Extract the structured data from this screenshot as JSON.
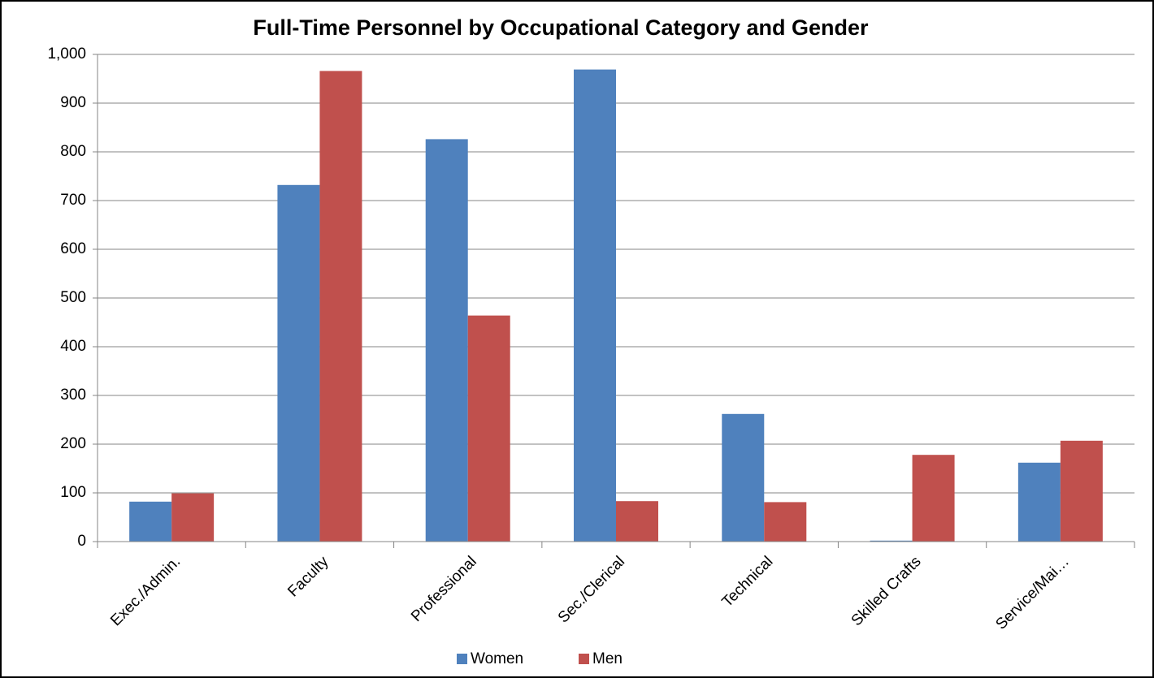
{
  "chart_data": {
    "type": "bar",
    "title": "Full-Time Personnel by Occupational Category and Gender",
    "categories": [
      "Exec./Admin.",
      "Faculty",
      "Professional",
      "Sec./Clerical",
      "Technical",
      "Skilled Crafts",
      "Service/Mai…"
    ],
    "series": [
      {
        "name": "Women",
        "color": "#4f81bd",
        "values": [
          82,
          732,
          826,
          969,
          262,
          2,
          162
        ]
      },
      {
        "name": "Men",
        "color": "#c0504d",
        "values": [
          99,
          966,
          464,
          83,
          81,
          178,
          207
        ]
      }
    ],
    "ylim": [
      0,
      1000
    ],
    "yticks": [
      0,
      100,
      200,
      300,
      400,
      500,
      600,
      700,
      800,
      900,
      {
        "value": 1000,
        "label": "1,000"
      }
    ],
    "grid": true,
    "legend": "bottom"
  }
}
